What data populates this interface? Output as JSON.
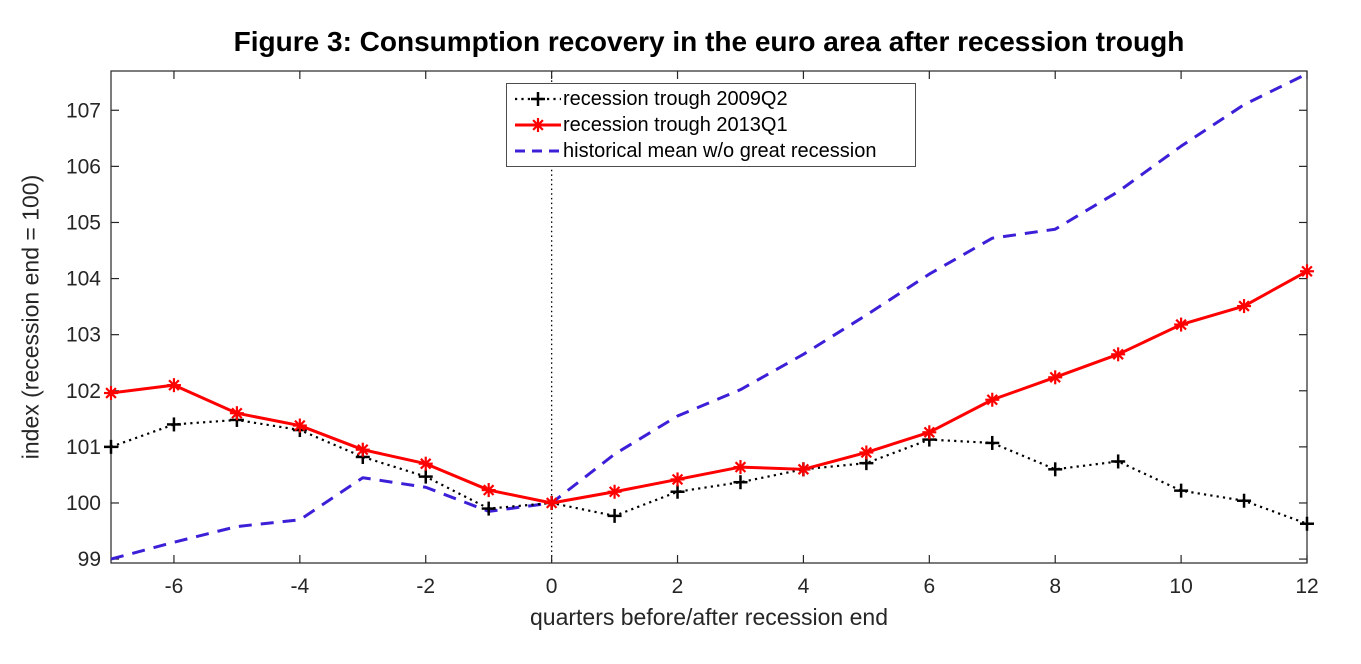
{
  "figure": {
    "title": "Figure 3: Consumption recovery in the euro area after recession trough"
  },
  "chart_data": {
    "type": "line",
    "title": "Figure 3: Consumption recovery in the euro area after recession trough",
    "xlabel": "quarters before/after recession end",
    "ylabel": "index (recession end = 100)",
    "xlim": [
      -7,
      12
    ],
    "ylim": [
      98.93,
      107.7
    ],
    "xticks": [
      -6,
      -4,
      -2,
      0,
      2,
      4,
      6,
      8,
      10,
      12
    ],
    "yticks": [
      99,
      100,
      101,
      102,
      103,
      104,
      105,
      106,
      107
    ],
    "grid": false,
    "vline_x": 0,
    "legend_position": "top-center-inside",
    "x": [
      -7,
      -6,
      -5,
      -4,
      -3,
      -2,
      -1,
      0,
      1,
      2,
      3,
      4,
      5,
      6,
      7,
      8,
      9,
      10,
      11,
      12
    ],
    "series": [
      {
        "name": "recession trough 2009Q2",
        "color": "#000000",
        "line_style": "dotted",
        "marker": "plus",
        "values": [
          101.0,
          101.4,
          101.48,
          101.3,
          100.82,
          100.47,
          99.9,
          100.0,
          99.77,
          100.2,
          100.37,
          100.6,
          100.71,
          101.13,
          101.07,
          100.6,
          100.74,
          100.22,
          100.04,
          99.63
        ]
      },
      {
        "name": "recession trough 2013Q1",
        "color": "#ff0000",
        "line_style": "solid",
        "marker": "asterisk",
        "values": [
          101.96,
          102.1,
          101.6,
          101.38,
          100.95,
          100.7,
          100.23,
          100.0,
          100.2,
          100.42,
          100.64,
          100.6,
          100.9,
          101.26,
          101.84,
          102.24,
          102.65,
          103.18,
          103.51,
          104.13
        ]
      },
      {
        "name": "historical mean w/o great recession",
        "color": "#3c20d8",
        "line_style": "dashed",
        "marker": "none",
        "values": [
          99.0,
          99.3,
          99.58,
          99.7,
          100.45,
          100.28,
          99.85,
          100.0,
          100.87,
          101.55,
          102.02,
          102.65,
          103.35,
          104.08,
          104.72,
          104.88,
          105.55,
          106.36,
          107.1,
          107.65
        ]
      }
    ]
  }
}
